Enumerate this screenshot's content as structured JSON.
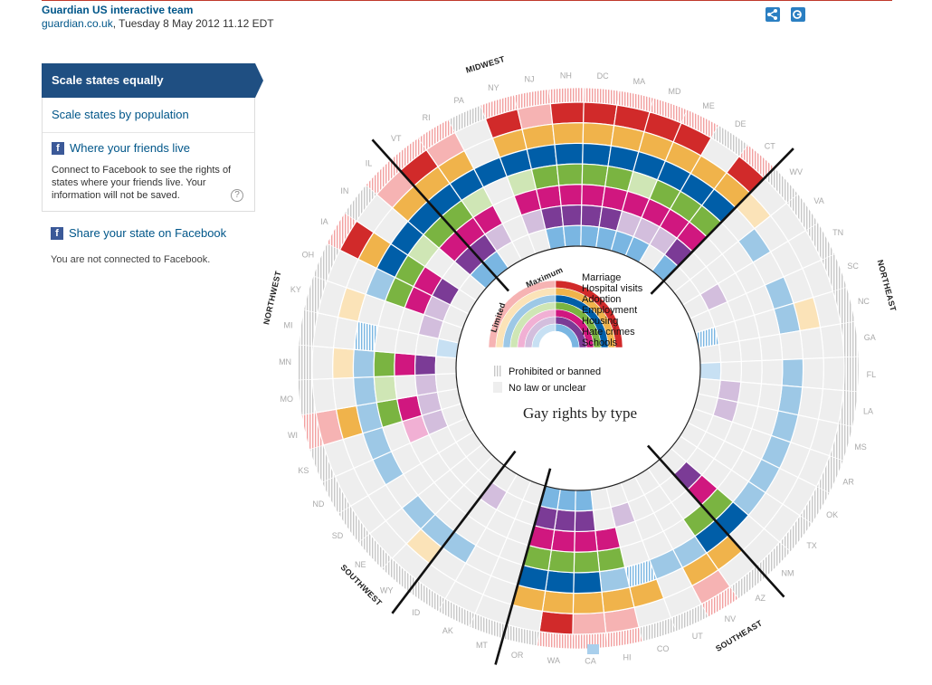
{
  "byline": {
    "team": "Guardian US interactive team",
    "site": "guardian.co.uk",
    "date": ", Tuesday 8 May 2012 11.12 EDT"
  },
  "menu": {
    "scale_equal": "Scale states equally",
    "scale_population": "Scale states by population",
    "friends_title": "Where your friends live",
    "friends_desc": "Connect to Facebook to see the rights of states where your friends live. Your information will not be saved.",
    "help": "?",
    "share_state": "Share your state on Facebook",
    "not_connected": "You are not connected to Facebook."
  },
  "chart_data": {
    "type": "radial",
    "title": "Gay rights by type",
    "rings": [
      "Marriage",
      "Hospital visits",
      "Adoption",
      "Employment",
      "Housing",
      "Hate crimes",
      "Schools"
    ],
    "ring_colors": {
      "Marriage": {
        "max": "#d12a2a",
        "lim": "#f6b3b3"
      },
      "Hospital visits": {
        "max": "#f0b34b",
        "lim": "#fbe3b8"
      },
      "Adoption": {
        "max": "#005ea8",
        "lim": "#9dc8e6"
      },
      "Employment": {
        "max": "#7ab441",
        "lim": "#cfe6b5"
      },
      "Housing": {
        "max": "#d0177f",
        "lim": "#f1b0d4"
      },
      "Hate crimes": {
        "max": "#7b3b96",
        "lim": "#d3bedd"
      },
      "Schools": {
        "max": "#7ab6e2",
        "lim": "#c7e0f3"
      }
    },
    "legend": {
      "limited": "Limited",
      "maximum": "Maximum",
      "prohibited": "Prohibited or banned",
      "no_law": "No law or unclear"
    },
    "regions": [
      "NORTHEAST",
      "SOUTHEAST",
      "SOUTHWEST",
      "NORTHWEST",
      "MIDWEST"
    ],
    "states": [
      {
        "s": "VT",
        "v": "MMMMMMM"
      },
      {
        "s": "RI",
        "v": "LMMLMLN"
      },
      {
        "s": "PA",
        "v": "PNMNNNN"
      },
      {
        "s": "NY",
        "v": "MMMLMLN"
      },
      {
        "s": "NJ",
        "v": "LMMMMMM"
      },
      {
        "s": "NH",
        "v": "MMMMMMM"
      },
      {
        "s": "DC",
        "v": "MMMMMMM"
      },
      {
        "s": "MA",
        "v": "MMMMMMM"
      },
      {
        "s": "MD",
        "v": "MMMLMLM"
      },
      {
        "s": "ME",
        "v": "MMMMMLM"
      },
      {
        "s": "DE",
        "v": "PMMMMLN"
      },
      {
        "s": "CT",
        "v": "MMMMMMM"
      },
      {
        "s": "WV",
        "v": "PLNNNNN"
      },
      {
        "s": "VA",
        "v": "PNLNNNN"
      },
      {
        "s": "TN",
        "v": "PNNNNLN"
      },
      {
        "s": "SC",
        "v": "PNLNNNN"
      },
      {
        "s": "NC",
        "v": "PLLNNNP"
      },
      {
        "s": "GA",
        "v": "PNNNNNN"
      },
      {
        "s": "FL",
        "v": "PNLNNNL"
      },
      {
        "s": "LA",
        "v": "PNLNNLN"
      },
      {
        "s": "MS",
        "v": "PNLNNLN"
      },
      {
        "s": "AR",
        "v": "PNLNNNN"
      },
      {
        "s": "OK",
        "v": "PNLNNNN"
      },
      {
        "s": "TX",
        "v": "PNLNNNN"
      },
      {
        "s": "NM",
        "v": "PNMMMMN"
      },
      {
        "s": "AZ",
        "v": "PMMMNNN"
      },
      {
        "s": "NV",
        "v": "LMLNNNN"
      },
      {
        "s": "UT",
        "v": "PNLNNNN"
      },
      {
        "s": "CO",
        "v": "PMPNNLN"
      },
      {
        "s": "HI",
        "v": "LMLMMNN"
      },
      {
        "s": "CA",
        "v": "LMMMMMM"
      },
      {
        "s": "WA",
        "v": "MMMMMMM"
      },
      {
        "s": "OR",
        "v": "PMMMMMM"
      },
      {
        "s": "MT",
        "v": "PNNNNNN"
      },
      {
        "s": "AK",
        "v": "PNNNNNN"
      },
      {
        "s": "ID",
        "v": "PNLNNLN"
      },
      {
        "s": "WY",
        "v": "PLLNNNN"
      },
      {
        "s": "NE",
        "v": "PNLNNNN"
      },
      {
        "s": "SD",
        "v": "PNNNNNN"
      },
      {
        "s": "ND",
        "v": "PNLNNNN"
      },
      {
        "s": "KS",
        "v": "PNLNLLN"
      },
      {
        "s": "WI",
        "v": "LMLMMLN"
      },
      {
        "s": "MO",
        "v": "PNLLNLN"
      },
      {
        "s": "MN",
        "v": "PLLMMMN"
      },
      {
        "s": "MI",
        "v": "PNPNNNL"
      },
      {
        "s": "KY",
        "v": "PLNNNLN"
      },
      {
        "s": "OH",
        "v": "PNLMMLN"
      },
      {
        "s": "IA",
        "v": "MMMMMMN"
      },
      {
        "s": "IN",
        "v": "PNMLNNN"
      },
      {
        "s": "IL",
        "v": "LMMMMMM"
      }
    ]
  }
}
